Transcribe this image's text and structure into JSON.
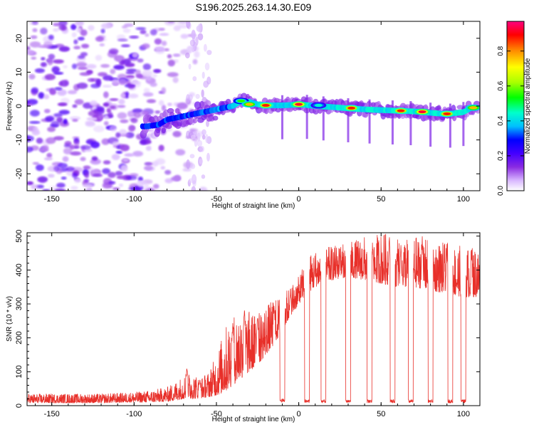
{
  "page": {
    "title": "S196.2025.263.14.30.E09"
  },
  "chart_data": [
    {
      "type": "heatmap",
      "name": "spectrogram",
      "title": "S196.2025.263.14.30.E09",
      "xlabel": "Height of straight line (km)",
      "ylabel": "Frequency (Hz)",
      "xlim": [
        -165,
        110
      ],
      "ylim": [
        -25,
        25
      ],
      "xticks": [
        -150,
        -100,
        -50,
        0,
        50,
        100
      ],
      "yticks": [
        -20,
        -10,
        0,
        10,
        20
      ],
      "colorbar": {
        "label": "Normalized spectral amplitude",
        "range": [
          0,
          0.97
        ],
        "ticks": [
          0.0,
          0.2,
          0.4,
          0.6,
          0.8
        ],
        "colormap": [
          "#ffffff",
          "#d9b8ff",
          "#8a2be2",
          "#4400ff",
          "#0000ff",
          "#00bfff",
          "#00ffcc",
          "#00ff00",
          "#aaff00",
          "#ffff00",
          "#ff8800",
          "#ff0000",
          "#ff0080"
        ]
      },
      "ridge": {
        "description": "frequency of dominant component vs height",
        "x": [
          -92,
          -85,
          -80,
          -75,
          -70,
          -65,
          -60,
          -55,
          -50,
          -45,
          -40,
          -35,
          -30,
          -25,
          -20,
          -15,
          -10,
          -5,
          0,
          5,
          10,
          20,
          30,
          40,
          50,
          60,
          70,
          80,
          90,
          100,
          105
        ],
        "y": [
          -6,
          -5.5,
          -4,
          -3.5,
          -3,
          -2.5,
          -2,
          -1.5,
          -1,
          -0.5,
          0,
          1.5,
          1.2,
          0.5,
          0.2,
          0.2,
          0.2,
          0.3,
          0.5,
          0.3,
          0,
          -0.3,
          -0.7,
          -1,
          -1.2,
          -1.4,
          -1.6,
          -2,
          -2.4,
          -1.8,
          -0.5
        ]
      },
      "hotspots": [
        {
          "x": -35,
          "y": 1.5,
          "amp": 0.6
        },
        {
          "x": -30,
          "y": 0.5,
          "amp": 0.8
        },
        {
          "x": -20,
          "y": 0.2,
          "amp": 0.9
        },
        {
          "x": 0,
          "y": 0.5,
          "amp": 0.95
        },
        {
          "x": 12,
          "y": 0.2,
          "amp": 0.5
        },
        {
          "x": 32,
          "y": -0.6,
          "amp": 0.9
        },
        {
          "x": 62,
          "y": -1.4,
          "amp": 0.9
        },
        {
          "x": 75,
          "y": -1.7,
          "amp": 0.95
        },
        {
          "x": 90,
          "y": -2.3,
          "amp": 0.9
        },
        {
          "x": 106,
          "y": -0.5,
          "amp": 0.8
        }
      ],
      "noise_region": {
        "x": [
          -165,
          -55
        ],
        "y": [
          -25,
          25
        ]
      }
    },
    {
      "type": "line",
      "name": "snr",
      "xlabel": "Height of straight line (km)",
      "ylabel": "SNR (10 * v/v)",
      "xlim": [
        -165,
        110
      ],
      "ylim": [
        0,
        510
      ],
      "xticks": [
        -150,
        -100,
        -50,
        0,
        50,
        100
      ],
      "yticks": [
        0,
        100,
        200,
        300,
        400,
        500
      ],
      "color": "#e8302a",
      "envelope": {
        "x": [
          -165,
          -140,
          -120,
          -100,
          -90,
          -80,
          -75,
          -70,
          -65,
          -60,
          -55,
          -50,
          -45,
          -40,
          -35,
          -30,
          -25,
          -20,
          -15,
          -10,
          -5,
          0,
          5,
          10,
          20,
          30,
          40,
          50,
          60,
          70,
          80,
          90,
          100,
          110
        ],
        "lower": [
          8,
          8,
          8,
          10,
          10,
          12,
          15,
          20,
          20,
          22,
          25,
          30,
          40,
          60,
          80,
          100,
          120,
          150,
          180,
          220,
          260,
          300,
          330,
          350,
          370,
          380,
          370,
          360,
          350,
          350,
          340,
          330,
          320,
          320
        ],
        "upper": [
          35,
          35,
          35,
          40,
          45,
          55,
          70,
          90,
          100,
          80,
          100,
          150,
          230,
          270,
          290,
          280,
          270,
          300,
          310,
          330,
          360,
          380,
          440,
          460,
          470,
          480,
          500,
          510,
          505,
          500,
          490,
          480,
          470,
          470
        ],
        "peaks_x": [
          -68,
          -60,
          -40,
          -33,
          -25,
          -15,
          -5,
          5,
          25,
          45,
          55,
          62,
          75,
          90,
          105
        ],
        "peaks_y": [
          115,
          80,
          250,
          290,
          270,
          310,
          360,
          440,
          470,
          480,
          510,
          490,
          500,
          480,
          460
        ]
      },
      "dropouts": {
        "description": "narrow drops of SNR to near zero",
        "x": [
          -10,
          5,
          15,
          30,
          43,
          57,
          68,
          80,
          92,
          100
        ],
        "width_km": [
          3,
          3,
          3,
          3,
          3,
          3,
          3,
          3,
          3,
          3
        ],
        "depth": [
          10,
          8,
          8,
          8,
          8,
          8,
          8,
          8,
          8,
          8
        ]
      }
    }
  ]
}
